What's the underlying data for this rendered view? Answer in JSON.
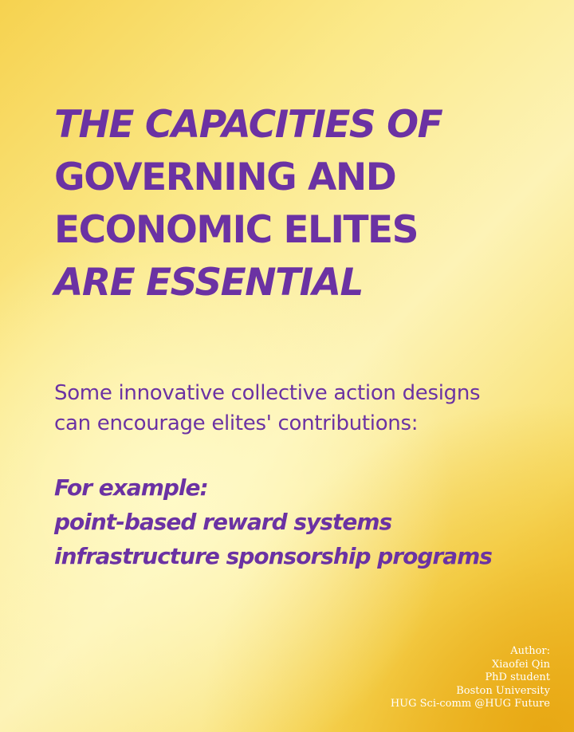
{
  "headline": {
    "line1": "THE CAPACITIES OF",
    "line2": "GOVERNING AND",
    "line3": "ECONOMIC ELITES",
    "line4": "ARE ESSENTIAL"
  },
  "subtext": {
    "line1": "Some innovative collective action designs",
    "line2": "can encourage elites' contributions:"
  },
  "examples": {
    "heading": "For example:",
    "items": [
      "point-based reward systems",
      "infrastructure sponsorship programs"
    ]
  },
  "credit": {
    "label": "Author:",
    "name": "Xiaofei Qin",
    "role": "PhD student",
    "affiliation": "Boston University",
    "org": "HUG Sci-comm  @HUG Future"
  },
  "colors": {
    "text_purple": "#6b32a3",
    "credit_white": "#ffffff",
    "bg_gold": "#e9a916",
    "bg_cream": "#fdf3b6"
  }
}
